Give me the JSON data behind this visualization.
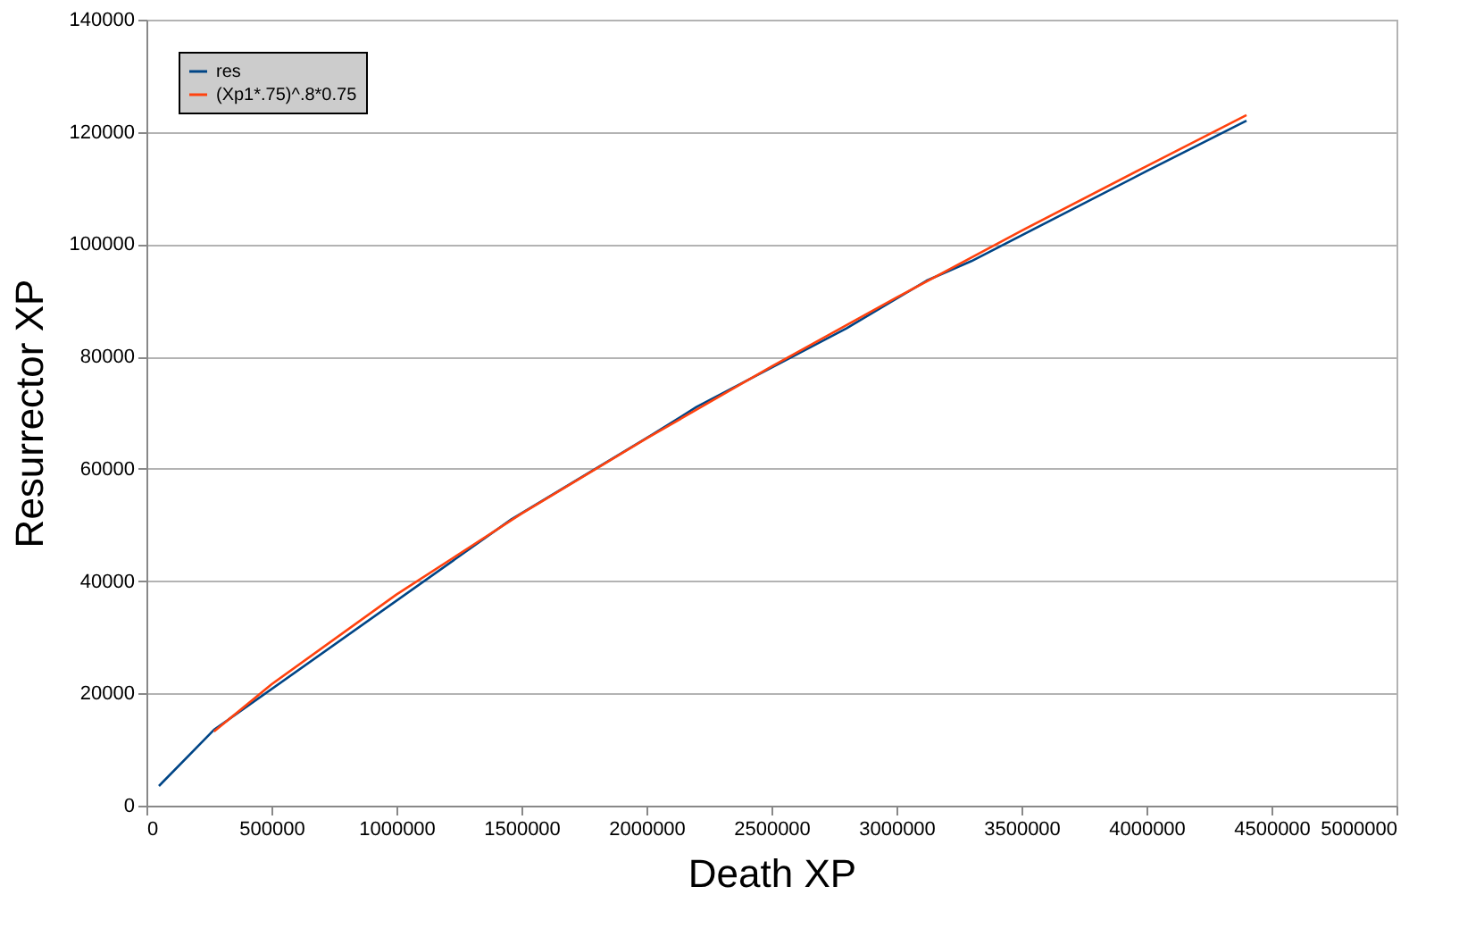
{
  "chart_data": {
    "type": "line",
    "xlabel": "Death XP",
    "ylabel": "Resurrector XP",
    "xlim": [
      0,
      5000000
    ],
    "xticks": [
      0,
      500000,
      1000000,
      1500000,
      2000000,
      2500000,
      3000000,
      3500000,
      4000000,
      4500000,
      5000000
    ],
    "ylim": [
      0,
      140000
    ],
    "yticks": [
      0,
      20000,
      40000,
      60000,
      80000,
      100000,
      120000,
      140000
    ],
    "grid": "y",
    "legend": "top left",
    "marker": "none",
    "line_style": "solid",
    "series": [
      {
        "name": "res",
        "color": "#004586",
        "x": [
          50000,
          270000,
          1460000,
          2020000,
          2200000,
          2800000,
          3120000,
          3300000,
          4000000,
          4400000
        ],
        "values": [
          3500,
          13500,
          51000,
          66000,
          71000,
          85000,
          93500,
          97000,
          113000,
          122000
        ]
      },
      {
        "name": "(Xp1*.75)^.8*0.75",
        "color": "#ff420e",
        "x": [
          270000,
          500000,
          1000000,
          1500000,
          2000000,
          2500000,
          3000000,
          3500000,
          4000000,
          4400000
        ],
        "values": [
          13200,
          21600,
          37600,
          52000,
          65400,
          78200,
          90500,
          102400,
          113900,
          123000
        ]
      }
    ]
  }
}
